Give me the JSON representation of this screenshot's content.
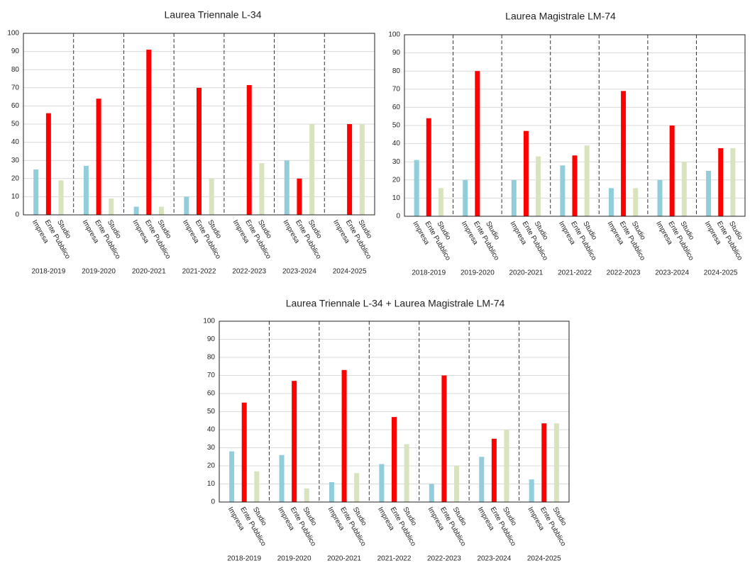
{
  "chart_data": [
    {
      "type": "bar",
      "title": "Laurea Triennale L-34",
      "categories": [
        "2018-2019",
        "2019-2020",
        "2020-2021",
        "2021-2022",
        "2022-2023",
        "2023-2024",
        "2024-2025"
      ],
      "series": [
        {
          "name": "Impresa",
          "color": "#92cddc",
          "values": [
            25,
            27,
            4.5,
            10,
            0,
            30,
            0
          ]
        },
        {
          "name": "Ente Pubblico",
          "color": "#ff0000",
          "values": [
            56,
            64,
            91,
            70,
            71.5,
            20,
            50
          ]
        },
        {
          "name": "Studio",
          "color": "#d7e4bd",
          "values": [
            19,
            9,
            4.5,
            20,
            28.5,
            50,
            50
          ]
        }
      ],
      "ylim": [
        0,
        100
      ],
      "yticks": [
        0,
        10,
        20,
        30,
        40,
        50,
        60,
        70,
        80,
        90,
        100
      ],
      "grid": true
    },
    {
      "type": "bar",
      "title": "Laurea Magistrale LM-74",
      "categories": [
        "2018-2019",
        "2019-2020",
        "2020-2021",
        "2021-2022",
        "2022-2023",
        "2023-2024",
        "2024-2025"
      ],
      "series": [
        {
          "name": "Impresa",
          "color": "#92cddc",
          "values": [
            31,
            20,
            20,
            28,
            15.5,
            20,
            25
          ]
        },
        {
          "name": "Ente Pubblico",
          "color": "#ff0000",
          "values": [
            54,
            80,
            47,
            33.5,
            69,
            50,
            37.5
          ]
        },
        {
          "name": "Studio",
          "color": "#d7e4bd",
          "values": [
            15.5,
            0,
            33,
            39,
            15.5,
            30,
            37.5
          ]
        }
      ],
      "ylim": [
        0,
        100
      ],
      "yticks": [
        0,
        10,
        20,
        30,
        40,
        50,
        60,
        70,
        80,
        90,
        100
      ],
      "grid": true
    },
    {
      "type": "bar",
      "title": "Laurea Triennale L-34 + Laurea Magistrale LM-74",
      "categories": [
        "2018-2019",
        "2019-2020",
        "2020-2021",
        "2021-2022",
        "2022-2023",
        "2023-2024",
        "2024-2025"
      ],
      "series": [
        {
          "name": "Impresa",
          "color": "#92cddc",
          "values": [
            28,
            26,
            11,
            21,
            10,
            25,
            12.5
          ]
        },
        {
          "name": "Ente Pubblico",
          "color": "#ff0000",
          "values": [
            55,
            67,
            73,
            47,
            70,
            35,
            43.5
          ]
        },
        {
          "name": "Studio",
          "color": "#d7e4bd",
          "values": [
            17,
            7.5,
            16,
            32,
            20,
            40,
            43.5
          ]
        }
      ],
      "ylim": [
        0,
        100
      ],
      "yticks": [
        0,
        10,
        20,
        30,
        40,
        50,
        60,
        70,
        80,
        90,
        100
      ],
      "grid": true
    }
  ]
}
